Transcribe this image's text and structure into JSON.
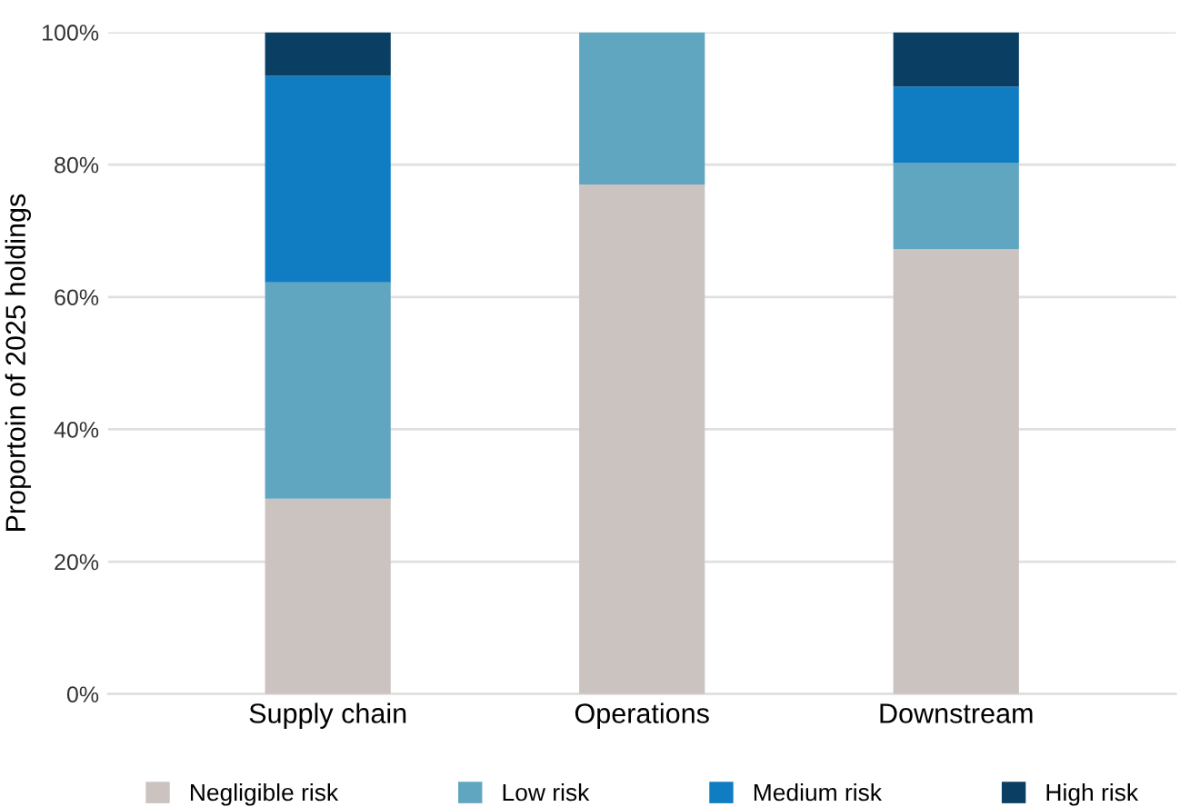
{
  "chart_data": {
    "type": "bar",
    "stacked": true,
    "ylabel": "Proportoin of 2025 holdings",
    "categories": [
      "Supply chain",
      "Operations",
      "Downstream"
    ],
    "series": [
      {
        "name": "Negligible risk",
        "color": "#cbc3c0",
        "values": [
          29.5,
          77.0,
          67.2
        ]
      },
      {
        "name": "Low risk",
        "color": "#60a6c0",
        "values": [
          32.7,
          23.0,
          13.1
        ]
      },
      {
        "name": "Medium risk",
        "color": "#107dc2",
        "values": [
          31.2,
          0,
          11.5
        ]
      },
      {
        "name": "High risk",
        "color": "#0b3e63",
        "values": [
          6.6,
          0,
          8.2
        ]
      }
    ],
    "ylim": [
      0,
      100
    ],
    "yticks": [
      {
        "value": 0,
        "label": "0%"
      },
      {
        "value": 20,
        "label": "20%"
      },
      {
        "value": 40,
        "label": "40%"
      },
      {
        "value": 60,
        "label": "60%"
      },
      {
        "value": 80,
        "label": "80%"
      },
      {
        "value": 100,
        "label": "100%"
      }
    ],
    "grid": "y",
    "legend": "bottom"
  }
}
